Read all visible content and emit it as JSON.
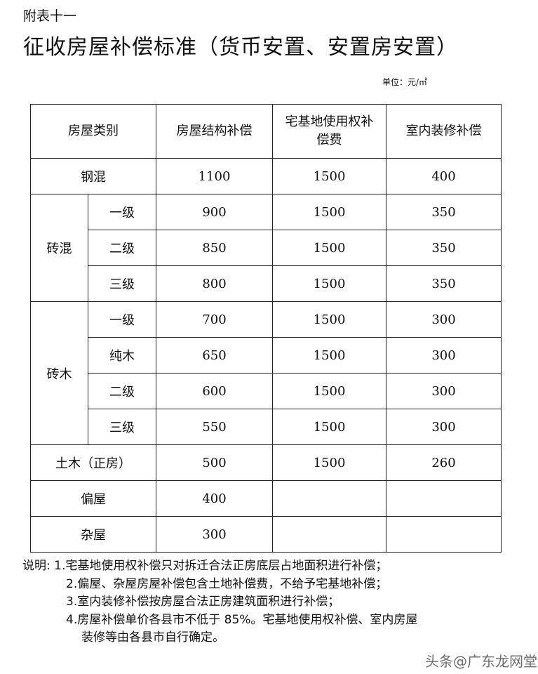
{
  "doc": {
    "appendix": "附表十一",
    "title": "征收房屋补偿标准（货币安置、安置房安置）",
    "unit": "单位：元/㎡"
  },
  "table": {
    "headers": [
      "房屋类别",
      "房屋结构补偿",
      "宅基地使用权补偿费",
      "室内装修补偿"
    ],
    "rows": [
      {
        "category": "钢混",
        "grade": "",
        "structure": "1100",
        "homestead": "1500",
        "decoration": "400"
      },
      {
        "category": "砖混",
        "grade": "一级",
        "structure": "900",
        "homestead": "1500",
        "decoration": "350"
      },
      {
        "category": "砖混",
        "grade": "二级",
        "structure": "850",
        "homestead": "1500",
        "decoration": "350"
      },
      {
        "category": "砖混",
        "grade": "三级",
        "structure": "800",
        "homestead": "1500",
        "decoration": "350"
      },
      {
        "category": "砖木",
        "grade": "一级",
        "structure": "700",
        "homestead": "1500",
        "decoration": "300"
      },
      {
        "category": "砖木",
        "grade": "纯木",
        "structure": "650",
        "homestead": "1500",
        "decoration": "300"
      },
      {
        "category": "砖木",
        "grade": "二级",
        "structure": "600",
        "homestead": "1500",
        "decoration": "300"
      },
      {
        "category": "砖木",
        "grade": "三级",
        "structure": "550",
        "homestead": "1500",
        "decoration": "300"
      },
      {
        "category": "土木（正房）",
        "grade": "",
        "structure": "500",
        "homestead": "1500",
        "decoration": "260"
      },
      {
        "category": "偏屋",
        "grade": "",
        "structure": "400",
        "homestead": "",
        "decoration": ""
      },
      {
        "category": "杂屋",
        "grade": "",
        "structure": "300",
        "homestead": "",
        "decoration": ""
      }
    ]
  },
  "notes": [
    "说明: 1.宅基地使用权补偿只对拆迁合法正房底层占地面积进行补偿；",
    "2.偏屋、杂屋房屋补偿包含土地补偿费，不给予宅基地补偿；",
    "3.室内装修补偿按房屋合法正房建筑面积进行补偿；",
    "4.房屋补偿单价各县市不低于 85%。宅基地使用权补偿、室内房屋",
    "装修等由各县市自行确定。"
  ],
  "watermark": "头条@广东龙网堂"
}
